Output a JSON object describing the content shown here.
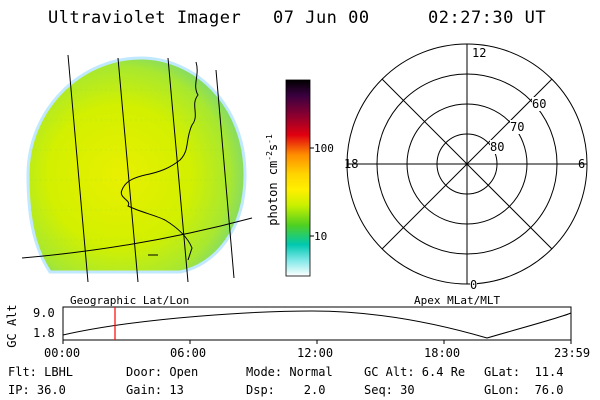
{
  "header": {
    "instrument": "Ultraviolet Imager",
    "date": "07 Jun 00",
    "time": "02:27:30 UT"
  },
  "colorbar": {
    "unit_label": "photon cm",
    "unit_exp1": "-2",
    "unit_s": "s",
    "unit_exp2": "-1",
    "tick_100": "100",
    "tick_10": "10",
    "colors": [
      "#000000",
      "#3a0040",
      "#8a0030",
      "#e00010",
      "#ff8c00",
      "#ffd400",
      "#fff000",
      "#c8f000",
      "#50d020",
      "#00c8b0",
      "#80e8e8",
      "#ffffff"
    ]
  },
  "polar": {
    "mlt_12": "12",
    "mlt_18": "18",
    "mlt_6": "6",
    "mlt_0": "0",
    "lat_60": "60",
    "lat_70": "70",
    "lat_80": "80"
  },
  "section_labels": {
    "left": "Geographic Lat/Lon",
    "right": "Apex MLat/MLT"
  },
  "timeline": {
    "axis_label": "GC Alt",
    "y_top": "9.0",
    "y_bottom": "1.8",
    "ticks": [
      "00:00",
      "06:00",
      "12:00",
      "18:00",
      "23:59"
    ],
    "current_time_hours": 2.458,
    "marker_color": "#ff0000"
  },
  "footer": {
    "row1": [
      "Flt: LBHL",
      "Door: Open",
      "Mode: Normal",
      "GC Alt: 6.4 Re",
      "GLat:  11.4"
    ],
    "row2": [
      "IP: 36.0",
      "Gain: 13",
      "Dsp:    2.0",
      "Seq: 30",
      "GLon:  76.0"
    ]
  }
}
